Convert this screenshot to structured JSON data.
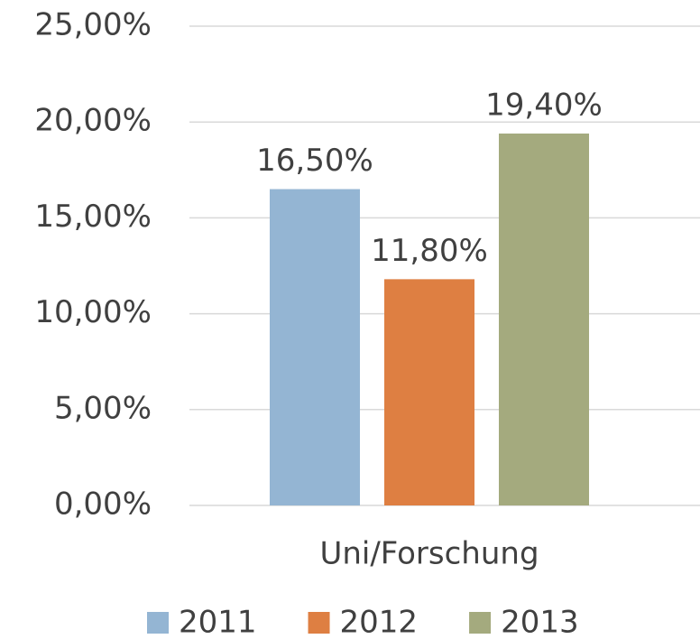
{
  "chart_data": {
    "type": "bar",
    "categories": [
      "Uni/Forschung"
    ],
    "series": [
      {
        "name": "2011",
        "color": "#94b5d3",
        "values": [
          16.5
        ],
        "value_labels": [
          "16,50%"
        ]
      },
      {
        "name": "2012",
        "color": "#de7f42",
        "values": [
          11.8
        ],
        "value_labels": [
          "11,80%"
        ]
      },
      {
        "name": "2013",
        "color": "#a4aa7e",
        "values": [
          19.4
        ],
        "value_labels": [
          "19,40%"
        ]
      }
    ],
    "ylim": [
      0,
      25
    ],
    "yticks": [
      {
        "value": 0,
        "label": "0,00%"
      },
      {
        "value": 5,
        "label": "5,00%"
      },
      {
        "value": 10,
        "label": "10,00%"
      },
      {
        "value": 15,
        "label": "15,00%"
      },
      {
        "value": 20,
        "label": "20,00%"
      },
      {
        "value": 25,
        "label": "25,00%"
      }
    ],
    "grid": true,
    "legend": "bottom"
  }
}
